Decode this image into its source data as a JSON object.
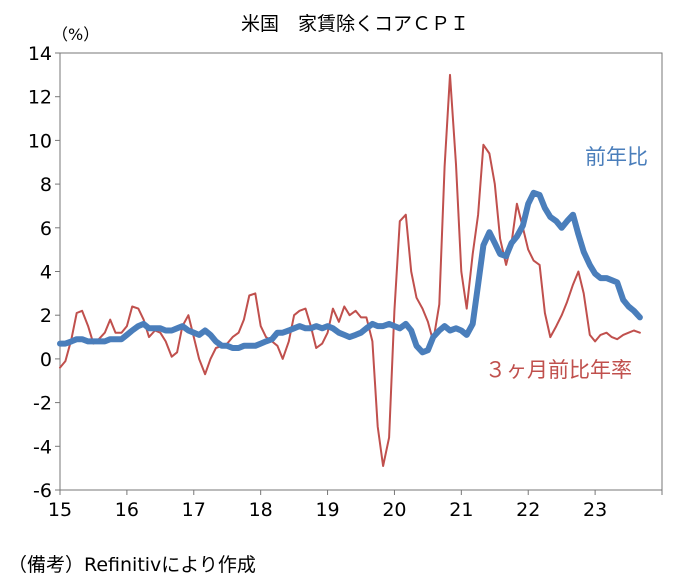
{
  "chart_data": {
    "type": "line",
    "title": "米国　家賃除くコアＣＰＩ",
    "ylabel": "（%）",
    "xlabel": "",
    "ylim": [
      -6,
      14
    ],
    "yticks": [
      14,
      12,
      10,
      8,
      6,
      4,
      2,
      0,
      -2,
      -4,
      -6
    ],
    "xlim": [
      2015.0,
      2024.0
    ],
    "xtick_labels": [
      "15",
      "16",
      "17",
      "18",
      "19",
      "20",
      "21",
      "22",
      "23"
    ],
    "grid": false,
    "series": [
      {
        "name": "３ヶ月前比年率",
        "color": "#c0504d",
        "x": [
          2015.0,
          2015.08,
          2015.17,
          2015.25,
          2015.33,
          2015.42,
          2015.5,
          2015.58,
          2015.67,
          2015.75,
          2015.83,
          2015.92,
          2016.0,
          2016.08,
          2016.17,
          2016.25,
          2016.33,
          2016.42,
          2016.5,
          2016.58,
          2016.67,
          2016.75,
          2016.83,
          2016.92,
          2017.0,
          2017.08,
          2017.17,
          2017.25,
          2017.33,
          2017.42,
          2017.5,
          2017.58,
          2017.67,
          2017.75,
          2017.83,
          2017.92,
          2018.0,
          2018.08,
          2018.17,
          2018.25,
          2018.33,
          2018.42,
          2018.5,
          2018.58,
          2018.67,
          2018.75,
          2018.83,
          2018.92,
          2019.0,
          2019.08,
          2019.17,
          2019.25,
          2019.33,
          2019.42,
          2019.5,
          2019.58,
          2019.67,
          2019.75,
          2019.83,
          2019.92,
          2020.0,
          2020.08,
          2020.17,
          2020.25,
          2020.33,
          2020.42,
          2020.5,
          2020.58,
          2020.67,
          2020.75,
          2020.83,
          2020.92,
          2021.0,
          2021.08,
          2021.17,
          2021.25,
          2021.33,
          2021.42,
          2021.5,
          2021.58,
          2021.67,
          2021.75,
          2021.83,
          2021.92,
          2022.0,
          2022.08,
          2022.17,
          2022.25,
          2022.33,
          2022.42,
          2022.5,
          2022.58,
          2022.67,
          2022.75,
          2022.83,
          2022.92,
          2023.0,
          2023.08,
          2023.17,
          2023.25,
          2023.33,
          2023.42,
          2023.5,
          2023.58,
          2023.67
        ],
        "values": [
          -0.4,
          -0.1,
          0.9,
          2.1,
          2.2,
          1.5,
          0.7,
          0.9,
          1.2,
          1.8,
          1.2,
          1.2,
          1.5,
          2.4,
          2.3,
          1.8,
          1.0,
          1.3,
          1.2,
          0.8,
          0.1,
          0.3,
          1.5,
          2.0,
          1.0,
          0.0,
          -0.7,
          0.0,
          0.5,
          0.6,
          0.7,
          1.0,
          1.2,
          1.8,
          2.9,
          3.0,
          1.5,
          1.0,
          0.8,
          0.6,
          0.0,
          0.8,
          2.0,
          2.2,
          2.3,
          1.5,
          0.5,
          0.7,
          1.2,
          2.3,
          1.7,
          2.4,
          2.0,
          2.2,
          1.9,
          1.9,
          0.8,
          -3.1,
          -4.9,
          -3.6,
          2.2,
          6.3,
          6.6,
          4.0,
          2.8,
          2.3,
          1.7,
          0.8,
          2.5,
          8.8,
          13.0,
          8.9,
          4.0,
          2.3,
          4.8,
          6.6,
          9.8,
          9.4,
          8.0,
          5.5,
          4.3,
          5.3,
          7.1,
          6.0,
          5.0,
          4.5,
          4.3,
          2.1,
          1.0,
          1.5,
          2.0,
          2.6,
          3.4,
          4.0,
          3.0,
          1.1,
          0.8,
          1.1,
          1.2,
          1.0,
          0.9,
          1.1,
          1.2,
          1.3,
          1.2
        ],
        "label": "３ヶ月前比年率"
      },
      {
        "name": "前年比",
        "color": "#4a7ebb",
        "x": [
          2015.0,
          2015.08,
          2015.17,
          2015.25,
          2015.33,
          2015.42,
          2015.5,
          2015.58,
          2015.67,
          2015.75,
          2015.83,
          2015.92,
          2016.0,
          2016.08,
          2016.17,
          2016.25,
          2016.33,
          2016.42,
          2016.5,
          2016.58,
          2016.67,
          2016.75,
          2016.83,
          2016.92,
          2017.0,
          2017.08,
          2017.17,
          2017.25,
          2017.33,
          2017.42,
          2017.5,
          2017.58,
          2017.67,
          2017.75,
          2017.83,
          2017.92,
          2018.0,
          2018.08,
          2018.17,
          2018.25,
          2018.33,
          2018.42,
          2018.5,
          2018.58,
          2018.67,
          2018.75,
          2018.83,
          2018.92,
          2019.0,
          2019.08,
          2019.17,
          2019.25,
          2019.33,
          2019.42,
          2019.5,
          2019.58,
          2019.67,
          2019.75,
          2019.83,
          2019.92,
          2020.0,
          2020.08,
          2020.17,
          2020.25,
          2020.33,
          2020.42,
          2020.5,
          2020.58,
          2020.67,
          2020.75,
          2020.83,
          2020.92,
          2021.0,
          2021.08,
          2021.17,
          2021.25,
          2021.33,
          2021.42,
          2021.5,
          2021.58,
          2021.67,
          2021.75,
          2021.83,
          2021.92,
          2022.0,
          2022.08,
          2022.17,
          2022.25,
          2022.33,
          2022.42,
          2022.5,
          2022.58,
          2022.67,
          2022.75,
          2022.83,
          2022.92,
          2023.0,
          2023.08,
          2023.17,
          2023.25,
          2023.33,
          2023.42,
          2023.5,
          2023.58,
          2023.67
        ],
        "values": [
          0.7,
          0.7,
          0.8,
          0.9,
          0.9,
          0.8,
          0.8,
          0.8,
          0.8,
          0.9,
          0.9,
          0.9,
          1.1,
          1.3,
          1.5,
          1.6,
          1.4,
          1.4,
          1.4,
          1.3,
          1.3,
          1.4,
          1.5,
          1.3,
          1.2,
          1.1,
          1.3,
          1.1,
          0.8,
          0.6,
          0.6,
          0.5,
          0.5,
          0.6,
          0.6,
          0.6,
          0.7,
          0.8,
          0.9,
          1.2,
          1.2,
          1.3,
          1.4,
          1.5,
          1.4,
          1.4,
          1.5,
          1.4,
          1.5,
          1.4,
          1.2,
          1.1,
          1.0,
          1.1,
          1.2,
          1.4,
          1.6,
          1.5,
          1.5,
          1.6,
          1.5,
          1.4,
          1.6,
          1.3,
          0.6,
          0.3,
          0.4,
          1.0,
          1.3,
          1.5,
          1.3,
          1.4,
          1.3,
          1.1,
          1.6,
          3.4,
          5.2,
          5.8,
          5.3,
          4.8,
          4.7,
          5.3,
          5.6,
          6.1,
          7.1,
          7.6,
          7.5,
          6.9,
          6.5,
          6.3,
          6.0,
          6.3,
          6.6,
          5.7,
          4.9,
          4.3,
          3.9,
          3.7,
          3.7,
          3.6,
          3.5,
          2.7,
          2.4,
          2.2,
          1.9
        ],
        "label": "前年比"
      }
    ]
  },
  "footnote": "（備考）Refinitivにより作成"
}
